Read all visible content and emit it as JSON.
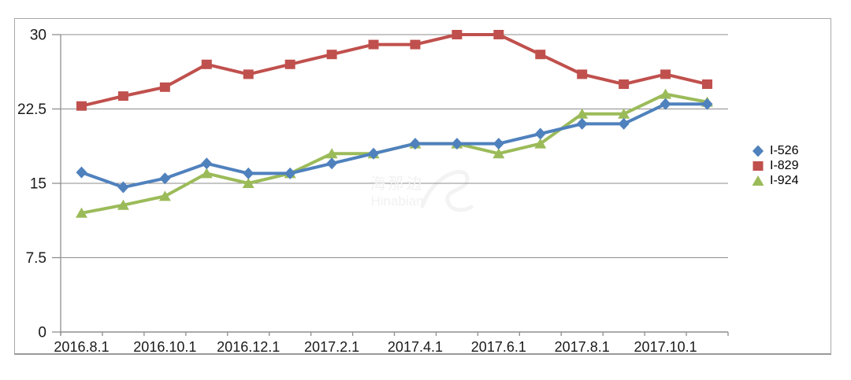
{
  "watermark": {
    "line1": "海那边",
    "line2": "Hinabian"
  },
  "chart_data": {
    "type": "line",
    "title": "",
    "xlabel": "",
    "ylabel": "",
    "x": [
      "2016.8.1",
      "2016.9.1",
      "2016.10.1",
      "2016.11.1",
      "2016.12.1",
      "2017.1.1",
      "2017.2.1",
      "2017.3.1",
      "2017.4.1",
      "2017.5.1",
      "2017.6.1",
      "2017.7.1",
      "2017.8.1",
      "2017.9.1",
      "2017.10.1",
      "2017.11.1"
    ],
    "xtick_labels": [
      "2016.8.1",
      "2016.10.1",
      "2016.12.1",
      "2017.2.1",
      "2017.4.1",
      "2017.6.1",
      "2017.8.1",
      "2017.10.1"
    ],
    "xtick_label_every": 2,
    "yticks": [
      0,
      7.5,
      15,
      22.5,
      30
    ],
    "ytick_labels": [
      "0",
      "7.5",
      "15",
      "22.5",
      "30"
    ],
    "ylim": [
      0,
      30
    ],
    "grid": true,
    "legend_position": "right",
    "colors": {
      "axis_gray": "#8e8e8e",
      "text": "#1a1a1a",
      "frame_gray": "#a8a8a8",
      "watermark_gray": "#f1f1f1"
    },
    "series": [
      {
        "name": "I-526",
        "color": "#4f81bd",
        "marker": "diamond",
        "values": [
          16.1,
          14.6,
          15.5,
          17,
          16,
          16,
          17,
          18,
          19,
          19,
          19,
          20,
          21,
          21,
          23,
          23
        ]
      },
      {
        "name": "I-829",
        "color": "#c0504d",
        "marker": "square",
        "values": [
          22.8,
          23.8,
          24.7,
          27,
          26,
          27,
          28,
          29,
          29,
          30,
          30,
          28,
          26,
          25,
          26,
          25
        ]
      },
      {
        "name": "I-924",
        "color": "#9bbb59",
        "marker": "triangle",
        "values": [
          12,
          12.8,
          13.7,
          16,
          15,
          16,
          18,
          18,
          19,
          19,
          18,
          19,
          22,
          22,
          24,
          23.2
        ]
      }
    ]
  }
}
